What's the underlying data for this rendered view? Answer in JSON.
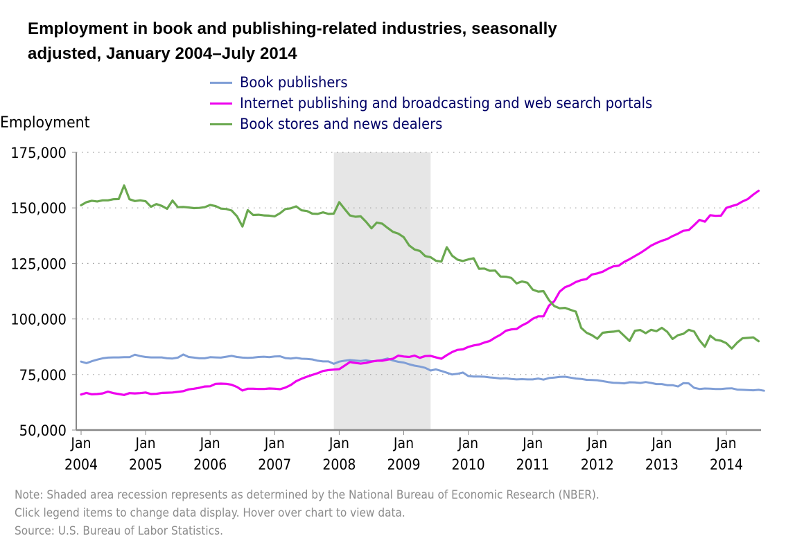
{
  "chart_data": {
    "type": "line",
    "title": "Employment in book and publishing-related industries, seasonally adjusted, January 2004–July 2014",
    "title_lines": [
      "Employment in book and publishing-related industries, seasonally",
      "adjusted, January 2004–July 2014"
    ],
    "ylabel": "Employment",
    "xlabel": "",
    "ylim": [
      50000,
      175000
    ],
    "yticks": [
      50000,
      75000,
      100000,
      125000,
      150000,
      175000
    ],
    "ytick_labels": [
      "50,000",
      "75,000",
      "100,000",
      "125,000",
      "150,000",
      "175,000"
    ],
    "x_start": "2004-01",
    "x_end": "2014-07",
    "xtick_labels": [
      [
        "Jan",
        "2004"
      ],
      [
        "Jan",
        "2005"
      ],
      [
        "Jan",
        "2006"
      ],
      [
        "Jan",
        "2007"
      ],
      [
        "Jan",
        "2008"
      ],
      [
        "Jan",
        "2009"
      ],
      [
        "Jan",
        "2010"
      ],
      [
        "Jan",
        "2011"
      ],
      [
        "Jan",
        "2012"
      ],
      [
        "Jan",
        "2013"
      ],
      [
        "Jan",
        "2014"
      ]
    ],
    "grid": "horizontal-dotted",
    "legend_position": "top",
    "recession": {
      "start": "2007-12",
      "end": "2009-06",
      "color": "#e6e6e6"
    },
    "series": [
      {
        "name": "Book publishers",
        "color": "#7f9ed6",
        "values": [
          80800,
          80100,
          81000,
          81700,
          82300,
          82600,
          82700,
          82700,
          82800,
          82800,
          83900,
          83300,
          82900,
          82700,
          82700,
          82700,
          82300,
          82200,
          82600,
          84000,
          82900,
          82600,
          82300,
          82300,
          82800,
          82700,
          82600,
          83000,
          83400,
          82900,
          82600,
          82500,
          82600,
          82900,
          83000,
          82800,
          83100,
          83200,
          82400,
          82200,
          82500,
          82100,
          82000,
          81800,
          81200,
          80900,
          80900,
          79800,
          80800,
          81200,
          81500,
          81300,
          81100,
          81400,
          81000,
          81100,
          81600,
          82200,
          81300,
          80700,
          80400,
          79600,
          79000,
          78600,
          78000,
          76800,
          77300,
          76600,
          75800,
          75000,
          75300,
          75900,
          74300,
          74100,
          74100,
          74000,
          73700,
          73500,
          73200,
          73300,
          73000,
          72800,
          72900,
          72800,
          72800,
          73200,
          72700,
          73400,
          73600,
          73900,
          74000,
          73600,
          73200,
          73000,
          72600,
          72500,
          72400,
          72000,
          71600,
          71300,
          71200,
          71000,
          71500,
          71400,
          71200,
          71600,
          71200,
          70700,
          70700,
          70200,
          70200,
          69600,
          71100,
          71000,
          69000,
          68500,
          68700,
          68600,
          68500,
          68500,
          68700,
          68800,
          68200,
          68100,
          68000,
          67900,
          68100,
          67700
        ]
      },
      {
        "name": "Internet publishing and broadcasting and web search portals",
        "color": "#ee00ee",
        "values": [
          66000,
          66700,
          66100,
          66200,
          66500,
          67300,
          66600,
          66200,
          65800,
          66600,
          66500,
          66600,
          66900,
          66200,
          66300,
          66700,
          66800,
          66900,
          67200,
          67500,
          68300,
          68600,
          69000,
          69600,
          69700,
          70800,
          70900,
          70800,
          70400,
          69400,
          67800,
          68600,
          68600,
          68500,
          68500,
          68700,
          68600,
          68400,
          69100,
          70300,
          72000,
          73100,
          74000,
          74800,
          75600,
          76600,
          77000,
          77200,
          77400,
          79000,
          80600,
          80200,
          79900,
          80200,
          80800,
          81200,
          81200,
          81700,
          82100,
          83500,
          83100,
          82900,
          83500,
          82500,
          83300,
          83400,
          82700,
          82100,
          83700,
          85100,
          86100,
          86300,
          87400,
          88100,
          88500,
          89400,
          90100,
          91600,
          92900,
          94700,
          95300,
          95500,
          97100,
          98300,
          100100,
          101200,
          101200,
          106000,
          108000,
          112300,
          114300,
          115200,
          116600,
          117500,
          118000,
          120000,
          120500,
          121300,
          122600,
          123700,
          124000,
          125700,
          126900,
          128300,
          129700,
          131300,
          133000,
          134200,
          135200,
          136000,
          137300,
          138400,
          139700,
          140000,
          142200,
          144600,
          143800,
          146700,
          146400,
          146500,
          150000,
          150800,
          151500,
          152900,
          154000,
          156000,
          157700
        ]
      },
      {
        "name": "Book stores and news dealers",
        "color": "#6aa84f",
        "values": [
          151200,
          152600,
          153200,
          152900,
          153400,
          153400,
          153900,
          154000,
          160100,
          153900,
          153100,
          153400,
          153000,
          150500,
          151700,
          150900,
          149600,
          153300,
          150300,
          150400,
          150200,
          149900,
          150000,
          150300,
          151300,
          150800,
          149700,
          149500,
          148800,
          146200,
          141600,
          149000,
          146800,
          146900,
          146600,
          146500,
          146200,
          147600,
          149500,
          149800,
          150700,
          148900,
          148600,
          147400,
          147300,
          148000,
          147300,
          147400,
          152600,
          149500,
          146600,
          146000,
          146200,
          143700,
          140800,
          143400,
          142900,
          141000,
          139200,
          138400,
          136800,
          133100,
          131300,
          130600,
          128300,
          127800,
          126200,
          125800,
          132300,
          128500,
          126700,
          126100,
          126800,
          127300,
          122600,
          122700,
          121700,
          121800,
          119100,
          119000,
          118500,
          116000,
          116900,
          116300,
          113200,
          112300,
          112500,
          108500,
          105800,
          104800,
          105000,
          104100,
          103300,
          96000,
          93800,
          92700,
          91100,
          93800,
          94100,
          94300,
          94700,
          92400,
          90100,
          94700,
          95000,
          93600,
          95100,
          94500,
          96000,
          94200,
          91000,
          92700,
          93300,
          95100,
          94400,
          90400,
          87500,
          92500,
          90600,
          90200,
          89100,
          86700,
          89300,
          91300,
          91500,
          91700,
          90000
        ]
      }
    ]
  },
  "legend": {
    "items": [
      {
        "label": "Book publishers",
        "color": "#7f9ed6"
      },
      {
        "label": "Internet publishing and broadcasting and web search portals",
        "color": "#ee00ee"
      },
      {
        "label": "Book stores and news dealers",
        "color": "#6aa84f"
      }
    ]
  },
  "notes": [
    "Note: Shaded area recession represents as determined by the National Bureau of Economic Research (NBER).",
    "Click legend items to change data display. Hover over chart to view data.",
    "Source: U.S. Bureau of Labor Statistics."
  ]
}
